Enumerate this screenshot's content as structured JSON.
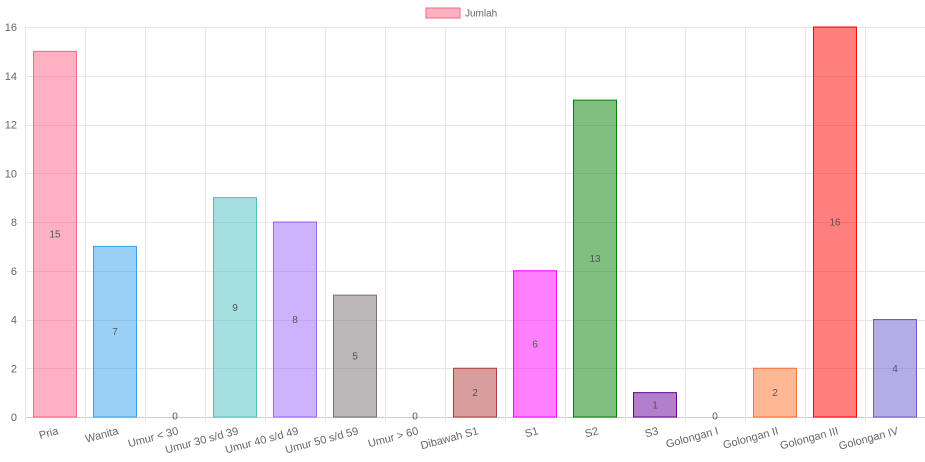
{
  "chart_data": {
    "type": "bar",
    "legend": {
      "position": "top",
      "label": "Jumlah",
      "color": "#ff6384"
    },
    "categories": [
      "Pria",
      "Wanita",
      "Umur < 30",
      "Umur 30 s/d 39",
      "Umur 40 s/d 49",
      "Umur 50 s/d 59",
      "Umur > 60",
      "Dibawah S1",
      "S1",
      "S2",
      "S3",
      "Golongan I",
      "Golongan II",
      "Golongan III",
      "Golongan IV"
    ],
    "series": [
      {
        "name": "Jumlah",
        "values": [
          15,
          7,
          0,
          9,
          8,
          5,
          0,
          2,
          6,
          13,
          1,
          0,
          2,
          16,
          4
        ],
        "colors": [
          "#ff6384",
          "#36a2eb",
          "#cccccc",
          "#4bc0c0",
          "#9966ff",
          "#7a6f72",
          "#cccccc",
          "#b33c3c",
          "#ff00ff",
          "#008000",
          "#660099",
          "#cccccc",
          "#ff6f2c",
          "#ff0000",
          "#6a5acd"
        ]
      }
    ],
    "ylim": [
      0,
      16
    ],
    "yticks": [
      0,
      2,
      4,
      6,
      8,
      10,
      12,
      14,
      16
    ],
    "grid": true,
    "data_labels": true
  }
}
